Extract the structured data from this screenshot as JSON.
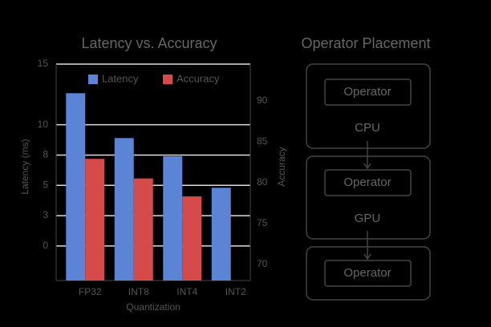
{
  "chart_data": {
    "type": "bar",
    "title": "Latency vs. Accuracy",
    "categories": [
      "FP32",
      "INT8",
      "INT4",
      "INT2"
    ],
    "series": [
      {
        "name": "Latency",
        "color": "#5b84d6",
        "values": [
          12.6,
          8.9,
          7.4,
          4.8
        ]
      },
      {
        "name": "Accuracy",
        "color": "#d64a4a",
        "axis": "y2",
        "values": [
          82.9,
          80.5,
          78.3,
          null
        ]
      }
    ],
    "x_label": "Quantization",
    "y_label": "Latency (ms)",
    "y2_label": "Accuracy",
    "ylim": [
      -2.85,
      15
    ],
    "yticks": [
      0,
      {
        "value": 2.5,
        "label": "3"
      },
      5,
      {
        "value": 7.5,
        "label": "8"
      },
      10,
      15
    ],
    "y2lim": [
      68,
      94.5
    ],
    "y2ticks": [
      70,
      75,
      80,
      85,
      90
    ],
    "grid": true,
    "legend": "top"
  },
  "diagram": {
    "title": "Operator Placement",
    "nodes": [
      {
        "label": "Operator"
      },
      {
        "label": "Operator"
      },
      {
        "label": "Operator"
      }
    ],
    "placements": [
      "CPU",
      "GPU"
    ]
  }
}
